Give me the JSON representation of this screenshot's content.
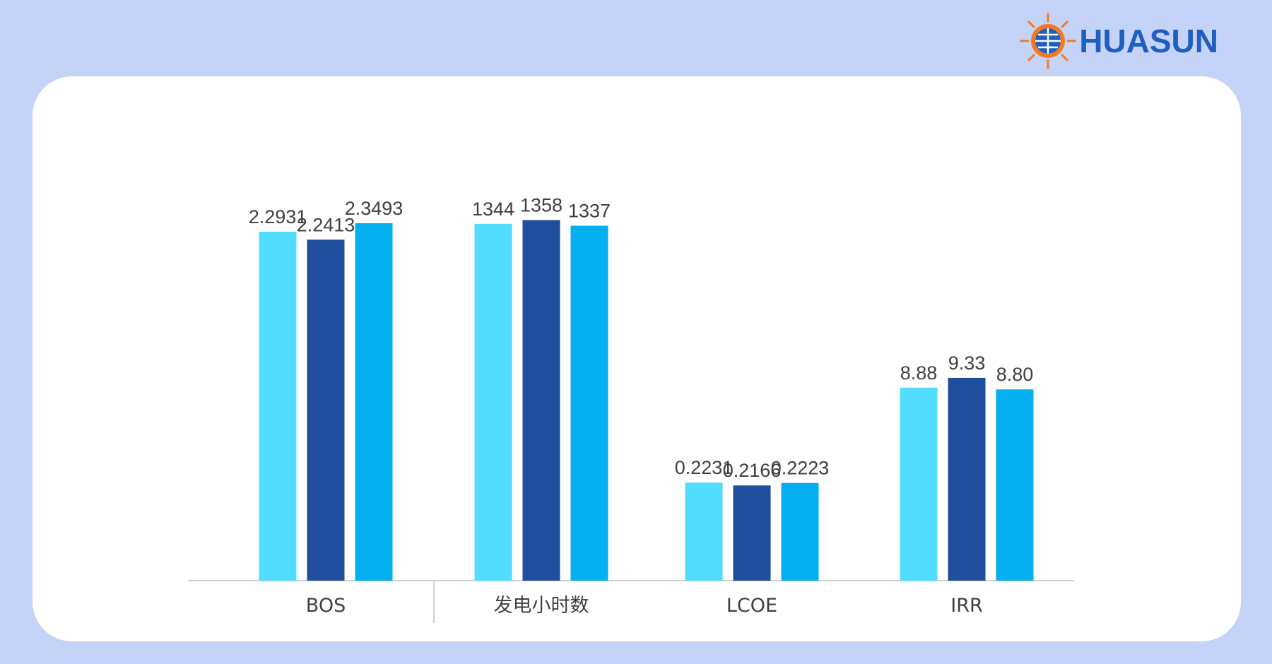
{
  "brand": {
    "name": "HUASUN",
    "colors": {
      "text": "#1f5fc0",
      "sun": "#f47a20"
    }
  },
  "chart_data": {
    "type": "bar",
    "title": "",
    "xlabel": "",
    "ylabel": "",
    "grid": false,
    "legend": "none",
    "panels": [
      {
        "category": "BOS",
        "values": [
          2.2931,
          2.2413,
          2.3493
        ],
        "labels": [
          "2.2931",
          "2.2413",
          "2.3493"
        ],
        "ylim": [
          0,
          2.6
        ]
      },
      {
        "category": "发电小时数",
        "values": [
          1344,
          1358,
          1337
        ],
        "labels": [
          "1344",
          "1358",
          "1337"
        ],
        "ylim": [
          0,
          1490
        ]
      },
      {
        "category": "LCOE",
        "values": [
          0.2231,
          0.2166,
          0.2223
        ],
        "labels": [
          "0.2231",
          "0.2166",
          "0.2223"
        ],
        "ylim": [
          0,
          0.9
        ]
      },
      {
        "category": "IRR",
        "values": [
          8.88,
          9.33,
          8.8
        ],
        "labels": [
          "8.88",
          "9.33",
          "8.80"
        ],
        "ylim": [
          0,
          18.2
        ]
      }
    ],
    "series_colors": [
      "#52dcfd",
      "#1f4e9c",
      "#04b0ef"
    ]
  }
}
